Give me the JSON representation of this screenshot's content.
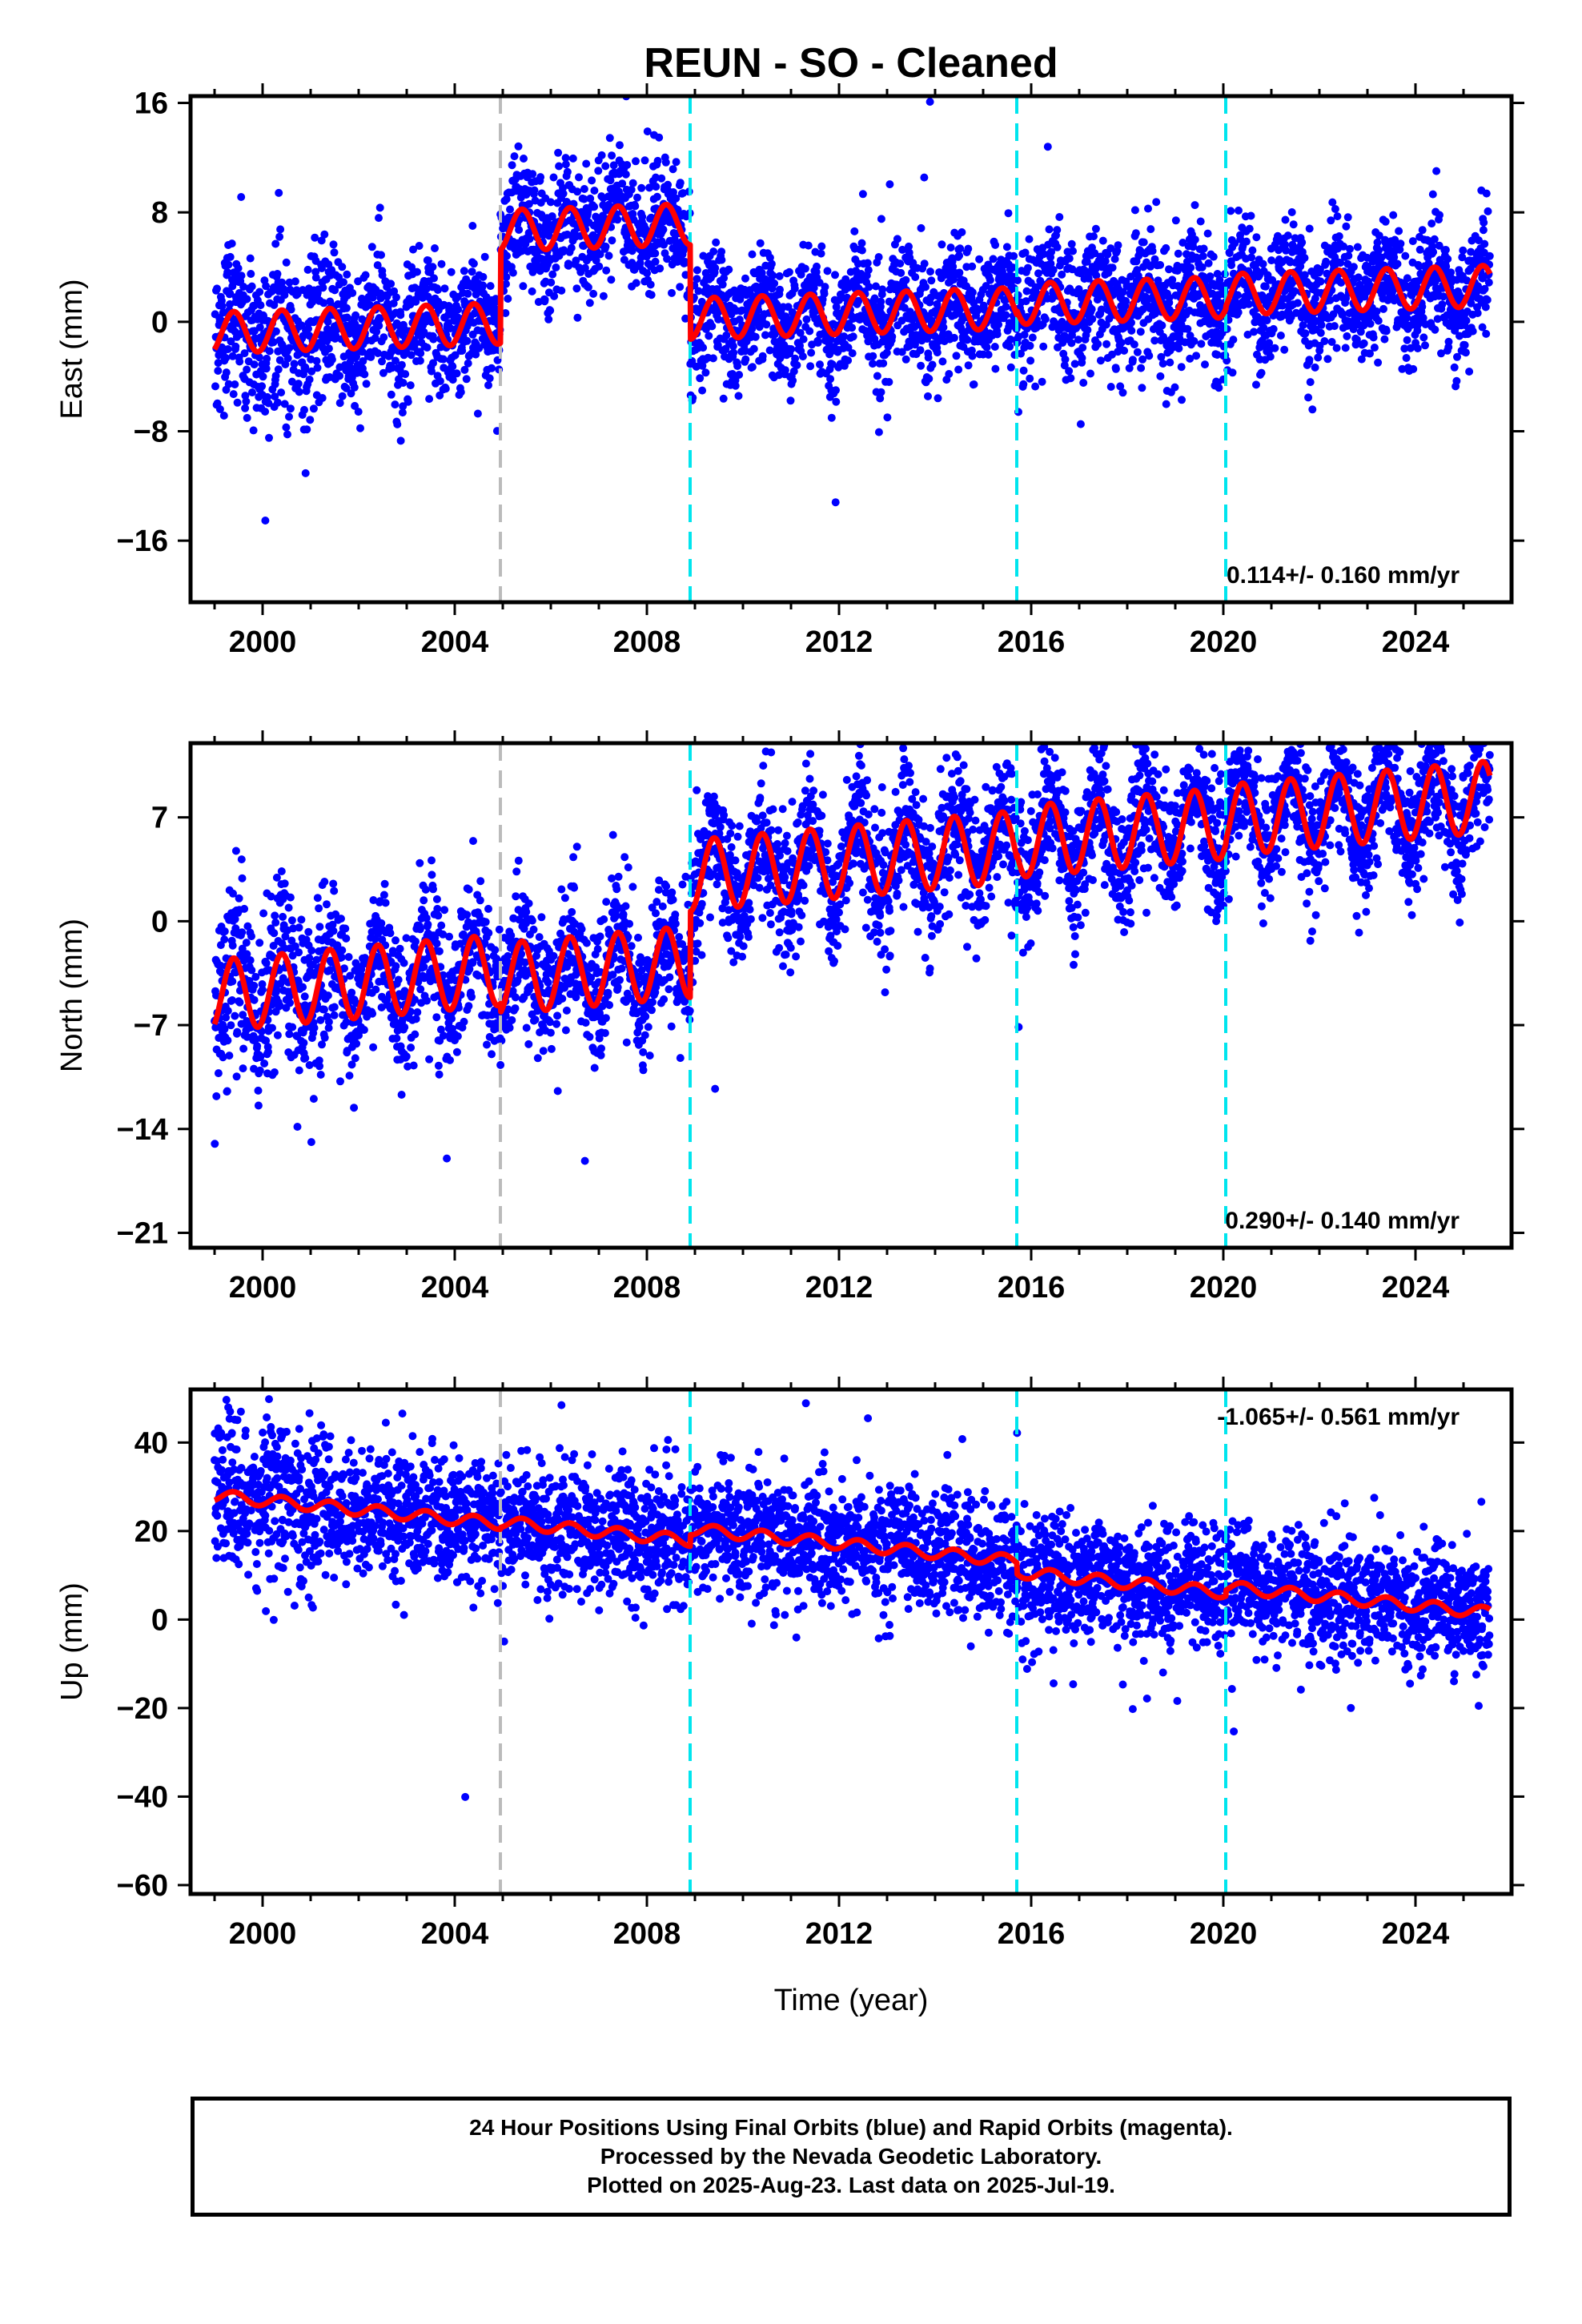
{
  "chart_data": {
    "type": "scatter",
    "title": "REUN  - SO - Cleaned",
    "xlabel": "Time (year)",
    "footer_lines": [
      "24 Hour Positions Using Final Orbits (blue) and Rapid Orbits (magenta).",
      "Processed by the Nevada Geodetic Laboratory.",
      "Plotted on 2025-Aug-23. Last data on 2025-Jul-19."
    ],
    "x_range": [
      1998.5,
      2026.0
    ],
    "x_ticks": [
      2000,
      2004,
      2008,
      2012,
      2016,
      2020,
      2024
    ],
    "data_start": 1999.0,
    "data_end": 2025.55,
    "colors": {
      "points": "#0000ff",
      "model": "#ff0000",
      "equipment_change": "#bbbbbb",
      "earthquake": "#00e5ee"
    },
    "equipment_change_lines": [
      2004.95
    ],
    "earthquake_lines": [
      2008.9,
      2015.7,
      2020.05
    ],
    "panels": [
      {
        "component": "East",
        "ylabel": "East (mm)",
        "y_range": [
          -20.5,
          16.5
        ],
        "y_ticks": [
          -16,
          -8,
          0,
          8,
          16
        ],
        "y_tick_labels": [
          "−16",
          "−8",
          "0",
          "8",
          "16"
        ],
        "rate": "0.114+/- 0.160 mm/yr",
        "rate_position": "bottom-right",
        "noise_sigma": 2.3,
        "model": {
          "trend_per_year": 0.114,
          "seasonal_amplitude": 1.5,
          "segments": [
            {
              "start": 1999.0,
              "end": 2004.95,
              "offset": -0.8
            },
            {
              "start": 2004.95,
              "end": 2008.9,
              "offset": 6.0
            },
            {
              "start": 2008.9,
              "end": 2015.7,
              "offset": -0.9
            },
            {
              "start": 2015.7,
              "end": 2020.05,
              "offset": -0.6
            },
            {
              "start": 2020.05,
              "end": 2025.55,
              "offset": -0.4
            }
          ]
        }
      },
      {
        "component": "North",
        "ylabel": "North (mm)",
        "y_range": [
          -22,
          12
        ],
        "y_ticks": [
          -21,
          -14,
          -7,
          0,
          7
        ],
        "y_tick_labels": [
          "−21",
          "−14",
          "−7",
          "0",
          "7"
        ],
        "rate": "0.290+/- 0.140 mm/yr",
        "rate_position": "bottom-right",
        "noise_sigma": 2.2,
        "model": {
          "trend_per_year": 0.29,
          "seasonal_amplitude": 2.4,
          "segments": [
            {
              "start": 1999.0,
              "end": 2004.95,
              "offset": -5.0
            },
            {
              "start": 2004.95,
              "end": 2008.9,
              "offset": -5.6
            },
            {
              "start": 2008.9,
              "end": 2015.7,
              "offset": 0.2
            },
            {
              "start": 2015.7,
              "end": 2020.05,
              "offset": 0.5
            },
            {
              "start": 2020.05,
              "end": 2025.55,
              "offset": 0.7
            }
          ]
        }
      },
      {
        "component": "Up",
        "ylabel": "Up (mm)",
        "y_range": [
          -62,
          52
        ],
        "y_ticks": [
          -60,
          -40,
          -20,
          0,
          20,
          40
        ],
        "y_tick_labels": [
          "−60",
          "−40",
          "−20",
          "0",
          "20",
          "40"
        ],
        "rate": "-1.065+/- 0.561 mm/yr",
        "rate_position": "top-right",
        "noise_sigma": 7.0,
        "model": {
          "trend_per_year": -1.065,
          "seasonal_amplitude": 1.3,
          "segments": [
            {
              "start": 1999.0,
              "end": 2004.95,
              "offset": 28.0
            },
            {
              "start": 2004.95,
              "end": 2008.9,
              "offset": 28.4
            },
            {
              "start": 2008.9,
              "end": 2015.7,
              "offset": 31.0
            },
            {
              "start": 2015.7,
              "end": 2020.05,
              "offset": 28.5
            },
            {
              "start": 2020.05,
              "end": 2025.55,
              "offset": 29.8
            }
          ]
        }
      }
    ]
  }
}
